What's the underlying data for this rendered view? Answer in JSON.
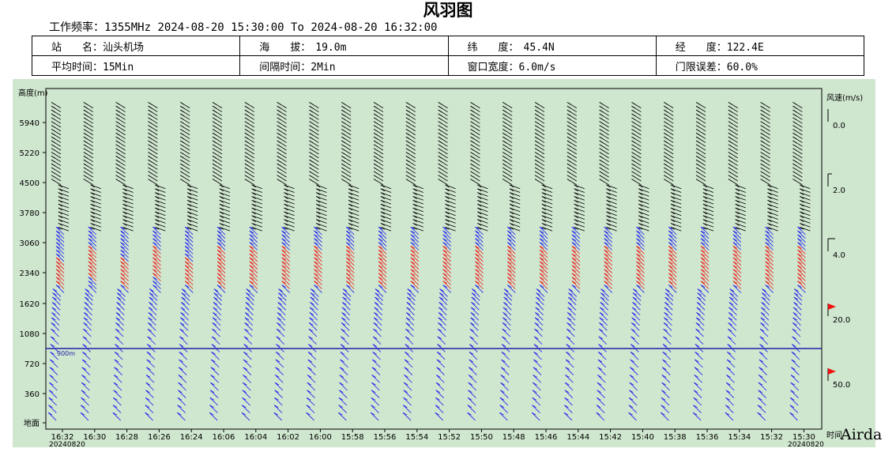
{
  "header": {
    "title": "风羽图",
    "freq_label": "工作频率：",
    "freq_value": "1355MHz",
    "period": "2024-08-20 15:30:00 To 2024-08-20 16:32:00"
  },
  "info": {
    "station_label": "站　　名：",
    "station_value": "汕头机场",
    "altitude_label": "海　　拔：",
    "altitude_value": "19.0m",
    "latitude_label": "纬　　度：",
    "latitude_value": "45.4N",
    "longitude_label": "经　　度：",
    "longitude_value": "122.4E",
    "avg_label": "平均时间：",
    "avg_value": "15Min",
    "interval_label": "间隔时间：",
    "interval_value": "2Min",
    "window_label": "窗口宽度：",
    "window_value": "6.0m/s",
    "threshold_label": "门限误差：",
    "threshold_value": "60.0%"
  },
  "watermark": "Airda",
  "chart_data": {
    "type": "wind-barb",
    "ylabel": "高度(m)",
    "xlabel": "时间",
    "x_date": "20240820",
    "y_ticks": [
      "地面",
      "360",
      "720",
      "1080",
      "1620",
      "2340",
      "3060",
      "3780",
      "4500",
      "5220",
      "5940"
    ],
    "y_tick_heights": [
      0,
      360,
      720,
      1080,
      1620,
      2340,
      3060,
      3780,
      4500,
      5220,
      5940
    ],
    "times": [
      "16:32",
      "16:30",
      "16:28",
      "16:26",
      "16:24",
      "16:06",
      "16:04",
      "16:02",
      "16:00",
      "15:58",
      "15:56",
      "15:54",
      "15:52",
      "15:50",
      "15:48",
      "15:46",
      "15:44",
      "15:42",
      "15:40",
      "15:38",
      "15:36",
      "15:34",
      "15:32",
      "15:30"
    ],
    "reference_line": {
      "height_m": 900,
      "label": "900m",
      "color": "#2222aa"
    },
    "speed_bands": [
      {
        "range": "low",
        "color": "#1a1aee"
      },
      {
        "range": "mid",
        "color": "#ee1111"
      },
      {
        "range": "high",
        "color": "#000000"
      }
    ],
    "legend": {
      "title": "风速(m/s)",
      "items": [
        {
          "label": "0.0",
          "symbol": "stem"
        },
        {
          "label": "2.0",
          "symbol": "short-barb"
        },
        {
          "label": "4.0",
          "symbol": "long-barb"
        },
        {
          "label": "20.0",
          "symbol": "flag"
        },
        {
          "label": "50.0",
          "symbol": "flag"
        }
      ]
    },
    "background": "#cfe6cf",
    "grid": false
  }
}
